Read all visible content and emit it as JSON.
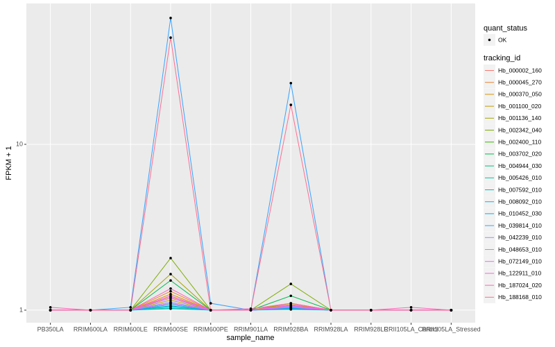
{
  "chart_data": {
    "type": "line",
    "x_label": "sample_name",
    "y_label": "FPKM + 1",
    "y_scale": "log",
    "grid": true,
    "categories": [
      "PB350LA",
      "RRIM600LA",
      "RRIM600LE",
      "RRIM600SE",
      "RRIM600PE",
      "RRIM901LA",
      "RRIM928BA",
      "RRIM928LA",
      "RRIM928LE",
      "RRII105LA_Control",
      "RRII105LA_Stressed"
    ],
    "ylim": [
      0.84,
      70.7
    ],
    "yticks": [
      1,
      10
    ],
    "legend_title": "tracking_id",
    "legend_position": "right",
    "point_legend_title": "quant_status",
    "point_legend_label": "OK",
    "point_color": "#000000",
    "series": [
      {
        "name": "Hb_000002_160",
        "color": "#F8766D",
        "values": [
          1,
          1,
          1,
          1.2,
          1,
          1,
          1.05,
          1,
          1,
          1,
          1
        ]
      },
      {
        "name": "Hb_000045_270",
        "color": "#EA8331",
        "values": [
          1,
          1,
          1,
          1.3,
          1,
          1,
          1.1,
          1,
          1,
          1,
          1
        ]
      },
      {
        "name": "Hb_000370_050",
        "color": "#D89000",
        "values": [
          1,
          1,
          1,
          1.25,
          1,
          1,
          1.08,
          1,
          1,
          1,
          1
        ]
      },
      {
        "name": "Hb_001100_020",
        "color": "#C09B00",
        "values": [
          1,
          1,
          1,
          1.15,
          1,
          1,
          1.04,
          1,
          1,
          1,
          1
        ]
      },
      {
        "name": "Hb_001136_140",
        "color": "#A3A500",
        "values": [
          1,
          1,
          1,
          1.65,
          1,
          1,
          1.1,
          1,
          1,
          1,
          1
        ]
      },
      {
        "name": "Hb_002342_040",
        "color": "#7CAE00",
        "values": [
          1,
          1,
          1,
          2.06,
          1,
          1,
          1.44,
          1,
          1,
          1,
          1
        ]
      },
      {
        "name": "Hb_002400_110",
        "color": "#39B600",
        "values": [
          1,
          1,
          1,
          1.1,
          1,
          1,
          1.03,
          1,
          1,
          1,
          1
        ]
      },
      {
        "name": "Hb_003702_020",
        "color": "#00BB4E",
        "values": [
          1,
          1,
          1,
          1.51,
          1,
          1,
          1.22,
          1,
          1,
          1,
          1
        ]
      },
      {
        "name": "Hb_004944_030",
        "color": "#00BF7D",
        "values": [
          1,
          1,
          1,
          1.05,
          1,
          1,
          1.02,
          1,
          1,
          1,
          1
        ]
      },
      {
        "name": "Hb_005426_010",
        "color": "#00C1A3",
        "values": [
          1,
          1,
          1,
          1.02,
          1,
          1,
          1.01,
          1,
          1,
          1,
          1
        ]
      },
      {
        "name": "Hb_007592_010",
        "color": "#00BFC4",
        "values": [
          1,
          1,
          1,
          1.03,
          1,
          1,
          1.02,
          1,
          1,
          1,
          1
        ]
      },
      {
        "name": "Hb_008092_010",
        "color": "#00BAE0",
        "values": [
          1,
          1,
          1,
          1.08,
          1,
          1,
          1.03,
          1,
          1,
          1,
          1
        ]
      },
      {
        "name": "Hb_010452_030",
        "color": "#00B0F6",
        "values": [
          1,
          1,
          1,
          1.06,
          1,
          1,
          1.02,
          1,
          1,
          1,
          1
        ]
      },
      {
        "name": "Hb_039814_010",
        "color": "#35A2FF",
        "values": [
          1,
          1,
          1.04,
          57.8,
          1.1,
          1,
          23.4,
          1,
          1,
          1,
          1
        ]
      },
      {
        "name": "Hb_042239_010",
        "color": "#9590FF",
        "values": [
          1,
          1,
          1,
          1.12,
          1,
          1,
          1.05,
          1,
          1,
          1,
          1
        ]
      },
      {
        "name": "Hb_048653_010",
        "color": "#C77CFF",
        "values": [
          1,
          1,
          1,
          1.18,
          1,
          1,
          1.06,
          1,
          1,
          1,
          1
        ]
      },
      {
        "name": "Hb_072149_010",
        "color": "#E76BF3",
        "values": [
          1,
          1,
          1,
          1.1,
          1,
          1,
          1.04,
          1,
          1,
          1,
          1
        ]
      },
      {
        "name": "Hb_122911_010",
        "color": "#FA62DB",
        "values": [
          1,
          1,
          1,
          1.22,
          1,
          1,
          1.07,
          1,
          1,
          1,
          1
        ]
      },
      {
        "name": "Hb_187024_020",
        "color": "#FF62BC",
        "values": [
          1.04,
          1,
          1,
          1.35,
          1,
          1.02,
          1.1,
          1,
          1,
          1.04,
          1
        ]
      },
      {
        "name": "Hb_188168_010",
        "color": "#FF6C91",
        "values": [
          1,
          1,
          1,
          44,
          1,
          1,
          17.3,
          1,
          1,
          1,
          1
        ]
      }
    ]
  }
}
